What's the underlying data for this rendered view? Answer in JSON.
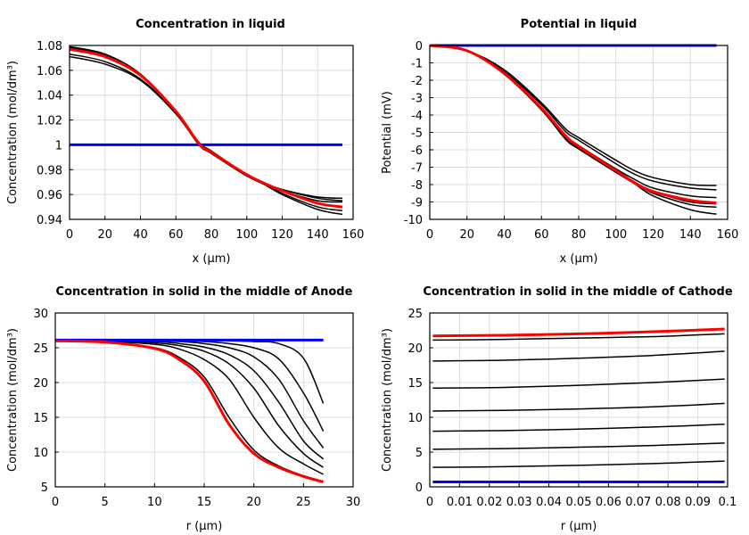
{
  "chart_data": [
    {
      "type": "line",
      "title": "Concentration in liquid",
      "xlabel": "x (µm)",
      "ylabel": "Concentration (mol/dm³)",
      "xlim": [
        0,
        160
      ],
      "ylim": [
        0.94,
        1.08
      ],
      "xticks": [
        0,
        20,
        40,
        60,
        80,
        100,
        120,
        140,
        160
      ],
      "yticks": [
        0.94,
        0.96,
        0.98,
        1,
        1.02,
        1.04,
        1.06,
        1.08
      ],
      "grid": true,
      "x": [
        0,
        20,
        40,
        60,
        73,
        80,
        100,
        110,
        120,
        140,
        154
      ],
      "series": [
        {
          "color": "#000000",
          "values": [
            1.079,
            1.073,
            1.057,
            1.027,
            1.002,
            0.995,
            0.976,
            0.969,
            0.964,
            0.958,
            0.957
          ]
        },
        {
          "color": "#000000",
          "values": [
            1.078,
            1.072,
            1.056,
            1.027,
            1.002,
            0.995,
            0.976,
            0.969,
            0.964,
            0.957,
            0.955
          ]
        },
        {
          "color": "#000000",
          "values": [
            1.073,
            1.067,
            1.053,
            1.026,
            1.001,
            0.994,
            0.976,
            0.969,
            0.963,
            0.955,
            0.954
          ]
        },
        {
          "color": "#000000",
          "values": [
            1.071,
            1.065,
            1.052,
            1.025,
            1.0,
            0.993,
            0.975,
            0.969,
            0.961,
            0.95,
            0.947
          ]
        },
        {
          "color": "#000000",
          "values": [
            1.079,
            1.073,
            1.057,
            1.027,
            1.001,
            0.994,
            0.975,
            0.968,
            0.96,
            0.948,
            0.944
          ]
        },
        {
          "color": "#0000ff",
          "x": [
            0,
            154
          ],
          "values": [
            1.0,
            1.0
          ]
        },
        {
          "color": "#ff0000",
          "values": [
            1.077,
            1.071,
            1.056,
            1.027,
            1.001,
            0.994,
            0.976,
            0.969,
            0.963,
            0.953,
            0.95
          ]
        }
      ]
    },
    {
      "type": "line",
      "title": "Potential in liquid",
      "xlabel": "x (µm)",
      "ylabel": "Potential (mV)",
      "xlim": [
        0,
        160
      ],
      "ylim": [
        -10,
        0
      ],
      "xticks": [
        0,
        20,
        40,
        60,
        80,
        100,
        120,
        140,
        160
      ],
      "yticks": [
        0,
        -1,
        -2,
        -3,
        -4,
        -5,
        -6,
        -7,
        -8,
        -9,
        -10
      ],
      "grid": true,
      "x": [
        0,
        20,
        40,
        60,
        73,
        80,
        100,
        110,
        120,
        140,
        154
      ],
      "series": [
        {
          "color": "#000000",
          "values": [
            0,
            -0.3,
            -1.4,
            -3.3,
            -4.8,
            -5.3,
            -6.6,
            -7.2,
            -7.6,
            -8.0,
            -8.05
          ]
        },
        {
          "color": "#000000",
          "values": [
            0,
            -0.3,
            -1.5,
            -3.4,
            -4.95,
            -5.45,
            -6.8,
            -7.4,
            -7.8,
            -8.2,
            -8.3
          ]
        },
        {
          "color": "#000000",
          "values": [
            0,
            -0.3,
            -1.6,
            -3.6,
            -5.2,
            -5.75,
            -7.1,
            -7.7,
            -8.2,
            -8.65,
            -8.75
          ]
        },
        {
          "color": "#000000",
          "values": [
            0,
            -0.3,
            -1.6,
            -3.6,
            -5.25,
            -5.8,
            -7.2,
            -7.85,
            -8.4,
            -9.0,
            -9.1
          ]
        },
        {
          "color": "#000000",
          "values": [
            0,
            -0.3,
            -1.65,
            -3.7,
            -5.35,
            -5.9,
            -7.25,
            -7.9,
            -8.5,
            -9.15,
            -9.3
          ]
        },
        {
          "color": "#000000",
          "values": [
            0,
            -0.3,
            -1.65,
            -3.7,
            -5.4,
            -5.95,
            -7.3,
            -7.95,
            -8.65,
            -9.45,
            -9.7
          ]
        },
        {
          "color": "#0000ff",
          "x": [
            0,
            154
          ],
          "values": [
            0,
            0
          ]
        },
        {
          "color": "#ff0000",
          "values": [
            0,
            -0.3,
            -1.6,
            -3.6,
            -5.2,
            -5.8,
            -7.2,
            -7.9,
            -8.4,
            -8.9,
            -9.05
          ]
        }
      ]
    },
    {
      "type": "line",
      "title": "Concentration in solid in the middle of Anode",
      "xlabel": "r (µm)",
      "ylabel": "Concentration (mol/dm³)",
      "xlim": [
        0,
        30
      ],
      "ylim": [
        5,
        30
      ],
      "xticks": [
        0,
        5,
        10,
        15,
        20,
        25,
        30
      ],
      "yticks": [
        5,
        10,
        15,
        20,
        25,
        30
      ],
      "grid": true,
      "x": [
        0,
        5,
        10,
        12.5,
        15,
        17.5,
        20,
        22.5,
        25,
        27
      ],
      "series": [
        {
          "color": "#000000",
          "values": [
            26,
            25.8,
            25.0,
            23.6,
            20.8,
            15.0,
            10.3,
            8.0,
            6.6,
            5.8
          ]
        },
        {
          "color": "#000000",
          "values": [
            26,
            25.9,
            25.5,
            24.8,
            23.3,
            20.5,
            15.0,
            10.6,
            8.3,
            6.8
          ]
        },
        {
          "color": "#000000",
          "values": [
            26,
            26,
            25.7,
            25.3,
            24.5,
            22.7,
            19.2,
            13.8,
            9.8,
            7.8
          ]
        },
        {
          "color": "#000000",
          "values": [
            26,
            26,
            25.9,
            25.6,
            25.1,
            24.0,
            21.7,
            17.2,
            11.6,
            9.0
          ]
        },
        {
          "color": "#000000",
          "values": [
            26,
            26,
            26,
            25.9,
            25.6,
            25.0,
            23.7,
            20.5,
            14.5,
            10.6
          ]
        },
        {
          "color": "#000000",
          "values": [
            26,
            26,
            26,
            26,
            25.9,
            25.6,
            25.0,
            23.4,
            18.5,
            13.0
          ]
        },
        {
          "color": "#000000",
          "values": [
            26,
            26,
            26,
            26,
            26,
            26,
            25.9,
            25.6,
            23.5,
            17.0
          ]
        },
        {
          "color": "#0000ff",
          "x": [
            0,
            27
          ],
          "values": [
            26.1,
            26.1
          ]
        },
        {
          "color": "#ff0000",
          "values": [
            26,
            25.8,
            24.9,
            23.3,
            20.2,
            14.0,
            9.8,
            7.8,
            6.5,
            5.7
          ]
        }
      ]
    },
    {
      "type": "line",
      "title": "Concentration in solid in the middle of Cathode",
      "xlabel": "r (µm)",
      "ylabel": "Concentration (mol/dm³)",
      "xlim": [
        0,
        0.1
      ],
      "ylim": [
        0,
        25
      ],
      "xticks": [
        0,
        0.01,
        0.02,
        0.03,
        0.04,
        0.05,
        0.06,
        0.07,
        0.08,
        0.09,
        0.1
      ],
      "yticks": [
        0,
        5,
        10,
        15,
        20,
        25
      ],
      "grid": true,
      "x": [
        0.001,
        0.025,
        0.05,
        0.075,
        0.099
      ],
      "series": [
        {
          "color": "#000000",
          "values": [
            21.1,
            21.2,
            21.4,
            21.6,
            22.0
          ]
        },
        {
          "color": "#000000",
          "values": [
            18.1,
            18.2,
            18.5,
            18.9,
            19.5
          ]
        },
        {
          "color": "#000000",
          "values": [
            14.2,
            14.3,
            14.6,
            15.0,
            15.5
          ]
        },
        {
          "color": "#000000",
          "values": [
            10.9,
            11.0,
            11.2,
            11.5,
            12.0
          ]
        },
        {
          "color": "#000000",
          "values": [
            8.0,
            8.1,
            8.3,
            8.6,
            9.0
          ]
        },
        {
          "color": "#000000",
          "values": [
            5.4,
            5.5,
            5.7,
            5.95,
            6.3
          ]
        },
        {
          "color": "#000000",
          "values": [
            2.8,
            2.9,
            3.1,
            3.35,
            3.7
          ]
        },
        {
          "color": "#0000ff",
          "values": [
            0.7,
            0.7,
            0.7,
            0.7,
            0.7
          ]
        },
        {
          "color": "#ff0000",
          "values": [
            21.7,
            21.8,
            22.0,
            22.3,
            22.7
          ]
        }
      ]
    }
  ]
}
